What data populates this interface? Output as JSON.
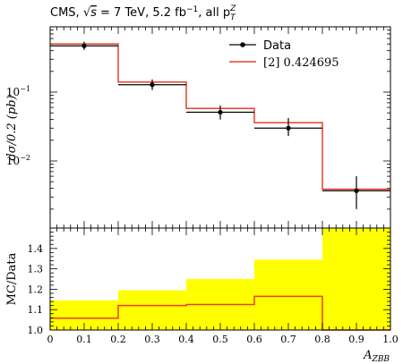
{
  "chart_data": [
    {
      "type": "line",
      "title": "CMS, √s = 7 TeV, 5.2 fb⁻¹, all pT^Z",
      "title_parts": {
        "prefix": "CMS, ",
        "sqrt_symbol": "√",
        "sqrt_arg": "s",
        "energy": " = 7 TeV, 5.2 fb",
        "lumi_exp": "−1",
        "tail": ", all p",
        "pt_sup": "Z",
        "pt_sub": "T"
      },
      "ylabel": "dσ/0.2 (pb)",
      "y_scale": "log",
      "ylim": [
        0.0015,
        0.9
      ],
      "xlim": [
        0,
        1
      ],
      "y_tick_labels": [
        {
          "value": 0.1,
          "base": "10",
          "exp": "−1"
        },
        {
          "value": 0.01,
          "base": "10",
          "exp": "−2"
        }
      ],
      "legend": {
        "placement": "top-right",
        "data_label": "Data",
        "mc_label": "[2] 0.424695"
      },
      "bin_edges": [
        0,
        0.2,
        0.4,
        0.6,
        0.8,
        1.0
      ],
      "data_series": {
        "name": "Data",
        "x": [
          0.1,
          0.3,
          0.5,
          0.7,
          0.9
        ],
        "values": [
          0.47,
          0.128,
          0.051,
          0.03,
          0.0037
        ],
        "err_low": [
          0.41,
          0.107,
          0.04,
          0.023,
          0.002
        ],
        "err_high": [
          0.54,
          0.153,
          0.064,
          0.042,
          0.006
        ],
        "color": "#000000"
      },
      "mc_series": {
        "name": "[2] 0.424695",
        "values": [
          0.5,
          0.14,
          0.058,
          0.036,
          0.0039
        ],
        "color": "#e8412a"
      }
    },
    {
      "type": "line",
      "ylabel": "MC/Data",
      "xlabel": "A_ZBB",
      "xlabel_parts": {
        "main": "A",
        "sub": "ZBB"
      },
      "ylim": [
        1.0,
        1.5
      ],
      "xlim": [
        0,
        1
      ],
      "x_tick_labels": [
        "0",
        "0.1",
        "0.2",
        "0.3",
        "0.4",
        "0.5",
        "0.6",
        "0.7",
        "0.8",
        "0.9",
        "1.0"
      ],
      "y_tick_labels": [
        "1.0",
        "1.1",
        "1.2",
        "1.3",
        "1.4"
      ],
      "bin_edges": [
        0,
        0.2,
        0.4,
        0.6,
        0.8,
        1.0
      ],
      "uncertainty_band": {
        "color": "#ffff00",
        "upper": [
          1.145,
          1.195,
          1.25,
          1.345,
          1.5
        ],
        "lower": [
          1.0,
          1.0,
          1.0,
          1.0,
          1.0
        ]
      },
      "ratio_series": {
        "color": "#e8412a",
        "values": [
          1.058,
          1.12,
          1.125,
          1.165,
          1.0
        ]
      }
    }
  ]
}
